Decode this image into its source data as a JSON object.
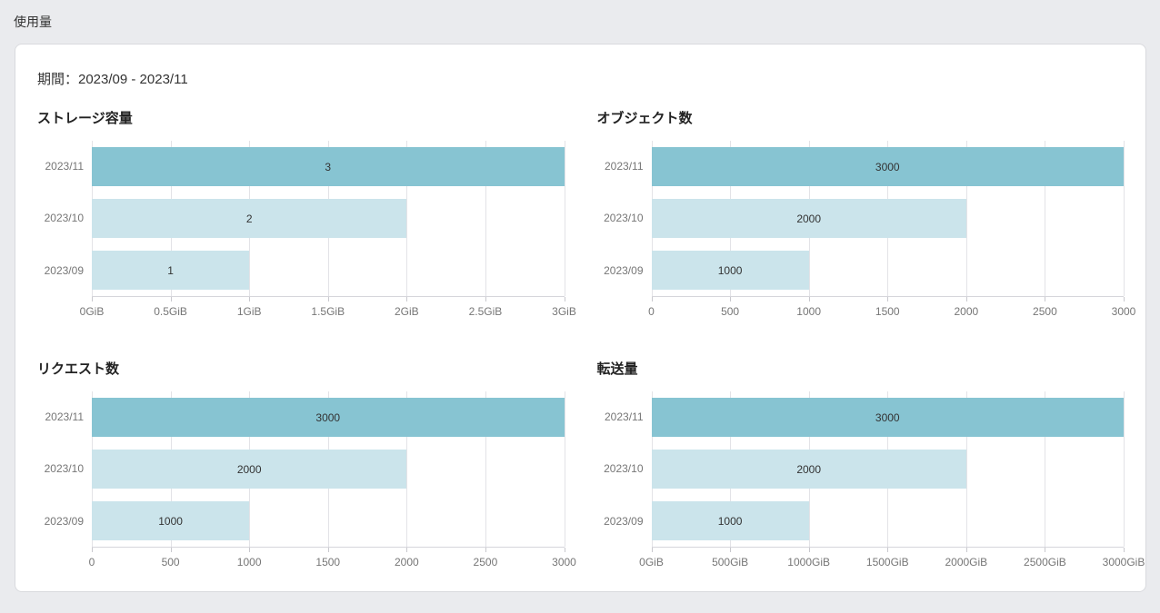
{
  "page": {
    "title": "使用量"
  },
  "panel": {
    "period_label": "期間：2023/09 - 2023/11"
  },
  "colors": {
    "bar_latest": "#87c4d2",
    "bar_previous": "#cbe4eb",
    "grid_line": "#e3e3e7",
    "axis_line": "#d6d6db",
    "axis_text": "#767676",
    "value_text": "#333333"
  },
  "chart_data": [
    {
      "type": "bar",
      "orientation": "horizontal",
      "title": "ストレージ容量",
      "categories": [
        "2023/11",
        "2023/10",
        "2023/09"
      ],
      "values": [
        3,
        2,
        1
      ],
      "value_labels": [
        "3",
        "2",
        "1"
      ],
      "xlim": [
        0,
        3
      ],
      "xtick_labels": [
        "0GiB",
        "0.5GiB",
        "1GiB",
        "1.5GiB",
        "2GiB",
        "2.5GiB",
        "3GiB"
      ],
      "grid": true,
      "legend": false,
      "highlight_index": 0
    },
    {
      "type": "bar",
      "orientation": "horizontal",
      "title": "オブジェクト数",
      "categories": [
        "2023/11",
        "2023/10",
        "2023/09"
      ],
      "values": [
        3000,
        2000,
        1000
      ],
      "value_labels": [
        "3000",
        "2000",
        "1000"
      ],
      "xlim": [
        0,
        3000
      ],
      "xtick_labels": [
        "0",
        "500",
        "1000",
        "1500",
        "2000",
        "2500",
        "3000"
      ],
      "grid": true,
      "legend": false,
      "highlight_index": 0
    },
    {
      "type": "bar",
      "orientation": "horizontal",
      "title": "リクエスト数",
      "categories": [
        "2023/11",
        "2023/10",
        "2023/09"
      ],
      "values": [
        3000,
        2000,
        1000
      ],
      "value_labels": [
        "3000",
        "2000",
        "1000"
      ],
      "xlim": [
        0,
        3000
      ],
      "xtick_labels": [
        "0",
        "500",
        "1000",
        "1500",
        "2000",
        "2500",
        "3000"
      ],
      "grid": true,
      "legend": false,
      "highlight_index": 0
    },
    {
      "type": "bar",
      "orientation": "horizontal",
      "title": "転送量",
      "categories": [
        "2023/11",
        "2023/10",
        "2023/09"
      ],
      "values": [
        3000,
        2000,
        1000
      ],
      "value_labels": [
        "3000",
        "2000",
        "1000"
      ],
      "xlim": [
        0,
        3000
      ],
      "xtick_labels": [
        "0GiB",
        "500GiB",
        "1000GiB",
        "1500GiB",
        "2000GiB",
        "2500GiB",
        "3000GiB"
      ],
      "grid": true,
      "legend": false,
      "highlight_index": 0
    }
  ]
}
